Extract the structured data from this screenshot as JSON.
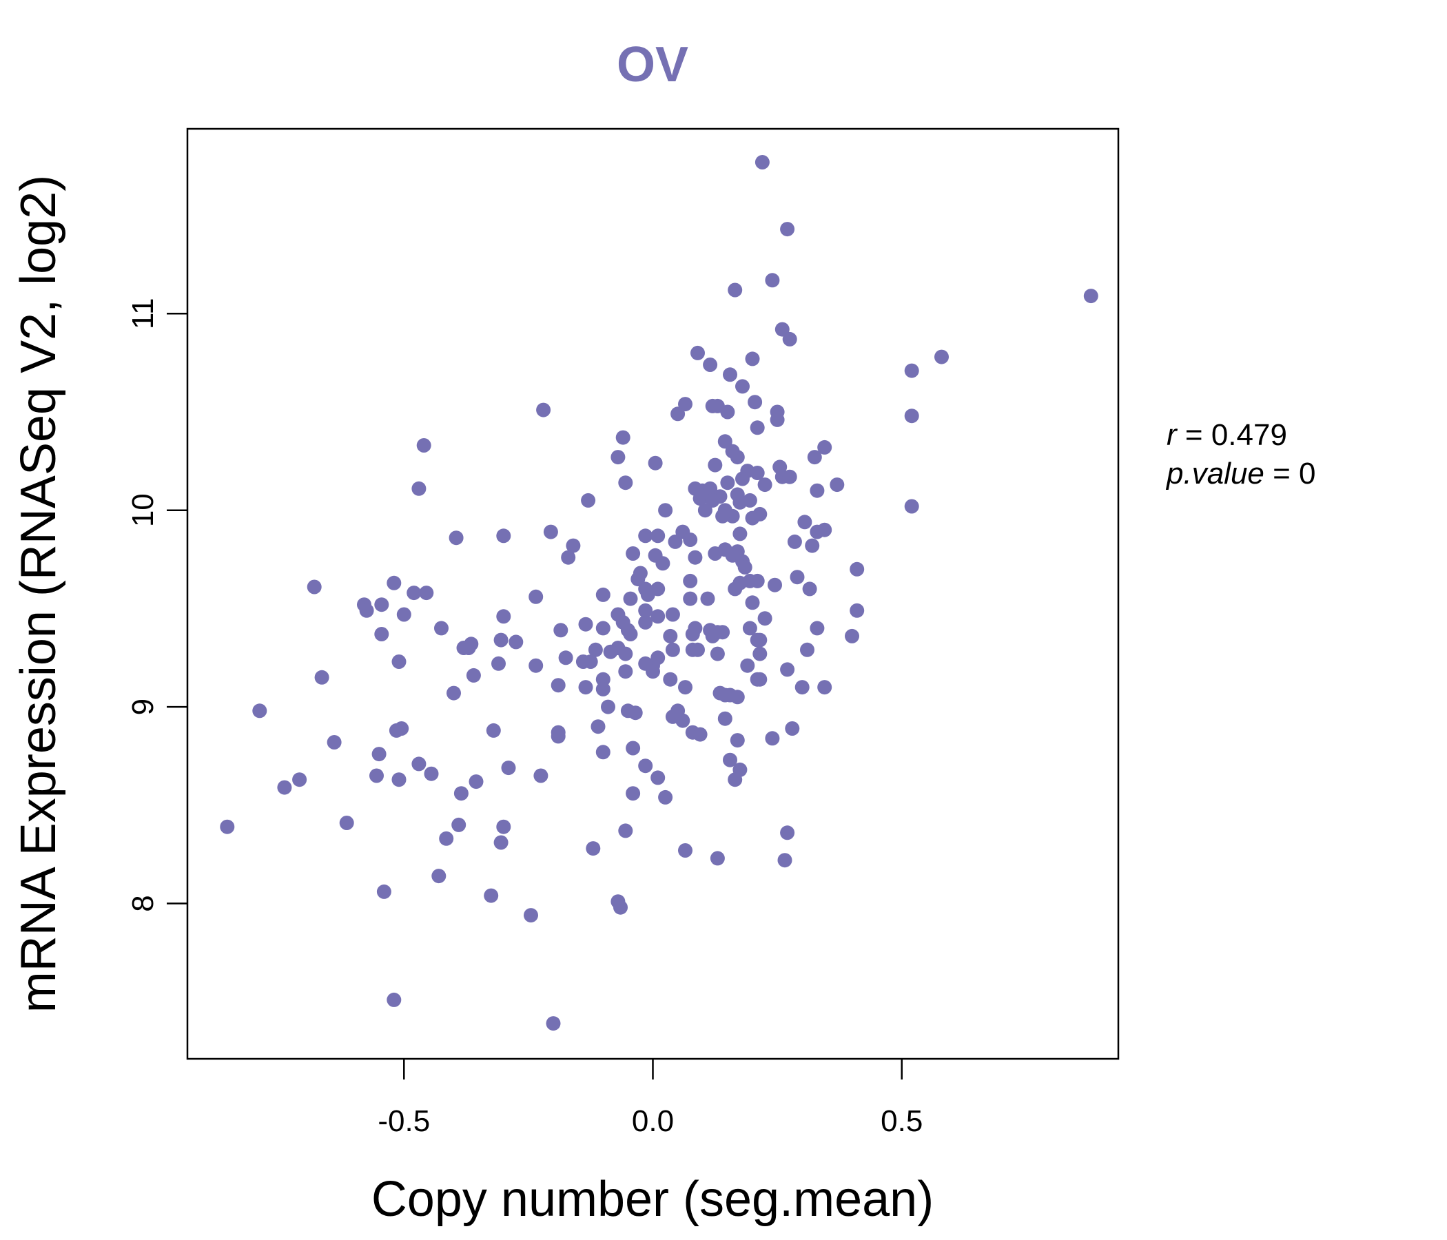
{
  "colors": {
    "accent": "#7570b3",
    "axis": "#000000",
    "background": "#ffffff"
  },
  "chart_data": {
    "type": "scatter",
    "title": "OV",
    "xlabel": "Copy number (seg.mean)",
    "ylabel": "mRNA Expression (RNASeq V2, log2)",
    "xlim": [
      -0.935,
      0.935
    ],
    "ylim": [
      7.21,
      11.94
    ],
    "x_ticks": [
      -0.5,
      0.0,
      0.5
    ],
    "x_tick_labels": [
      "-0.5",
      "0.0",
      "0.5"
    ],
    "y_ticks": [
      8,
      9,
      10,
      11
    ],
    "y_tick_labels": [
      "8",
      "9",
      "10",
      "11"
    ],
    "stats": {
      "r_label": "r",
      "r_value": "0.479",
      "p_label": "p.value",
      "p_value": "0"
    },
    "points": [
      [
        0.22,
        11.77
      ],
      [
        0.27,
        11.43
      ],
      [
        0.24,
        11.17
      ],
      [
        0.165,
        11.12
      ],
      [
        0.88,
        11.09
      ],
      [
        0.26,
        10.92
      ],
      [
        0.275,
        10.87
      ],
      [
        0.09,
        10.8
      ],
      [
        0.58,
        10.78
      ],
      [
        0.2,
        10.77
      ],
      [
        0.115,
        10.74
      ],
      [
        0.52,
        10.71
      ],
      [
        0.155,
        10.69
      ],
      [
        0.18,
        10.63
      ],
      [
        0.205,
        10.55
      ],
      [
        0.065,
        10.54
      ],
      [
        0.12,
        10.53
      ],
      [
        0.13,
        10.53
      ],
      [
        -0.22,
        10.51
      ],
      [
        0.05,
        10.49
      ],
      [
        0.15,
        10.5
      ],
      [
        0.25,
        10.5
      ],
      [
        0.52,
        10.48
      ],
      [
        0.25,
        10.46
      ],
      [
        0.21,
        10.42
      ],
      [
        -0.06,
        10.37
      ],
      [
        0.145,
        10.35
      ],
      [
        -0.46,
        10.33
      ],
      [
        0.345,
        10.32
      ],
      [
        0.16,
        10.3
      ],
      [
        -0.07,
        10.27
      ],
      [
        0.17,
        10.27
      ],
      [
        0.325,
        10.27
      ],
      [
        0.005,
        10.24
      ],
      [
        0.125,
        10.23
      ],
      [
        0.255,
        10.22
      ],
      [
        0.19,
        10.2
      ],
      [
        0.21,
        10.19
      ],
      [
        0.18,
        10.16
      ],
      [
        0.26,
        10.17
      ],
      [
        0.275,
        10.17
      ],
      [
        -0.055,
        10.14
      ],
      [
        0.15,
        10.14
      ],
      [
        0.225,
        10.13
      ],
      [
        0.37,
        10.13
      ],
      [
        -0.47,
        10.11
      ],
      [
        0.085,
        10.11
      ],
      [
        0.1,
        10.1
      ],
      [
        0.115,
        10.11
      ],
      [
        0.33,
        10.1
      ],
      [
        0.135,
        10.07
      ],
      [
        0.17,
        10.08
      ],
      [
        0.095,
        10.06
      ],
      [
        0.12,
        10.05
      ],
      [
        -0.13,
        10.05
      ],
      [
        0.175,
        10.04
      ],
      [
        0.195,
        10.05
      ],
      [
        0.52,
        10.02
      ],
      [
        0.105,
        10.0
      ],
      [
        0.145,
        10.0
      ],
      [
        0.025,
        10.0
      ],
      [
        0.215,
        9.98
      ],
      [
        0.16,
        9.97
      ],
      [
        0.14,
        9.97
      ],
      [
        0.2,
        9.96
      ],
      [
        0.305,
        9.94
      ],
      [
        -0.205,
        9.89
      ],
      [
        0.06,
        9.89
      ],
      [
        0.33,
        9.89
      ],
      [
        0.345,
        9.9
      ],
      [
        0.175,
        9.88
      ],
      [
        -0.3,
        9.87
      ],
      [
        -0.015,
        9.87
      ],
      [
        0.01,
        9.87
      ],
      [
        -0.395,
        9.86
      ],
      [
        0.075,
        9.85
      ],
      [
        0.045,
        9.84
      ],
      [
        0.285,
        9.84
      ],
      [
        -0.16,
        9.82
      ],
      [
        0.32,
        9.82
      ],
      [
        0.125,
        9.78
      ],
      [
        0.17,
        9.79
      ],
      [
        0.145,
        9.8
      ],
      [
        -0.04,
        9.78
      ],
      [
        0.005,
        9.77
      ],
      [
        0.085,
        9.76
      ],
      [
        0.16,
        9.77
      ],
      [
        0.18,
        9.74
      ],
      [
        -0.17,
        9.76
      ],
      [
        0.02,
        9.73
      ],
      [
        0.185,
        9.71
      ],
      [
        0.41,
        9.7
      ],
      [
        -0.025,
        9.68
      ],
      [
        -0.03,
        9.65
      ],
      [
        0.075,
        9.64
      ],
      [
        0.195,
        9.64
      ],
      [
        0.21,
        9.64
      ],
      [
        0.29,
        9.66
      ],
      [
        0.175,
        9.63
      ],
      [
        0.245,
        9.62
      ],
      [
        0.165,
        9.6
      ],
      [
        -0.68,
        9.61
      ],
      [
        0.315,
        9.6
      ],
      [
        -0.015,
        9.6
      ],
      [
        0.01,
        9.6
      ],
      [
        -0.52,
        9.63
      ],
      [
        -0.48,
        9.58
      ],
      [
        -0.455,
        9.58
      ],
      [
        -0.1,
        9.57
      ],
      [
        -0.01,
        9.57
      ],
      [
        -0.235,
        9.56
      ],
      [
        0.075,
        9.55
      ],
      [
        0.11,
        9.55
      ],
      [
        -0.045,
        9.55
      ],
      [
        -0.58,
        9.52
      ],
      [
        -0.545,
        9.52
      ],
      [
        0.2,
        9.53
      ],
      [
        -0.575,
        9.49
      ],
      [
        0.41,
        9.49
      ],
      [
        -0.015,
        9.49
      ],
      [
        -0.5,
        9.47
      ],
      [
        0.01,
        9.46
      ],
      [
        0.04,
        9.47
      ],
      [
        -0.07,
        9.47
      ],
      [
        -0.3,
        9.46
      ],
      [
        0.225,
        9.45
      ],
      [
        -0.015,
        9.43
      ],
      [
        -0.06,
        9.43
      ],
      [
        -0.135,
        9.42
      ],
      [
        -0.1,
        9.4
      ],
      [
        0.085,
        9.4
      ],
      [
        -0.05,
        9.39
      ],
      [
        0.115,
        9.39
      ],
      [
        0.195,
        9.4
      ],
      [
        -0.425,
        9.4
      ],
      [
        -0.185,
        9.39
      ],
      [
        0.33,
        9.4
      ],
      [
        0.13,
        9.38
      ],
      [
        0.14,
        9.38
      ],
      [
        -0.545,
        9.37
      ],
      [
        0.035,
        9.36
      ],
      [
        0.08,
        9.37
      ],
      [
        0.12,
        9.36
      ],
      [
        0.4,
        9.36
      ],
      [
        -0.305,
        9.34
      ],
      [
        0.21,
        9.34
      ],
      [
        0.215,
        9.34
      ],
      [
        -0.045,
        9.37
      ],
      [
        -0.275,
        9.33
      ],
      [
        -0.365,
        9.32
      ],
      [
        -0.37,
        9.3
      ],
      [
        -0.38,
        9.3
      ],
      [
        0.04,
        9.29
      ],
      [
        -0.115,
        9.29
      ],
      [
        -0.07,
        9.3
      ],
      [
        0.08,
        9.29
      ],
      [
        0.09,
        9.29
      ],
      [
        0.31,
        9.29
      ],
      [
        0.13,
        9.27
      ],
      [
        -0.085,
        9.28
      ],
      [
        0.215,
        9.27
      ],
      [
        0.01,
        9.25
      ],
      [
        -0.055,
        9.27
      ],
      [
        -0.175,
        9.25
      ],
      [
        -0.14,
        9.23
      ],
      [
        -0.125,
        9.23
      ],
      [
        -0.51,
        9.23
      ],
      [
        -0.31,
        9.22
      ],
      [
        -0.235,
        9.21
      ],
      [
        0.0,
        9.21
      ],
      [
        -0.015,
        9.22
      ],
      [
        0.19,
        9.21
      ],
      [
        0.27,
        9.19
      ],
      [
        -0.055,
        9.18
      ],
      [
        0.0,
        9.18
      ],
      [
        -0.665,
        9.15
      ],
      [
        -0.36,
        9.16
      ],
      [
        0.035,
        9.14
      ],
      [
        0.21,
        9.14
      ],
      [
        0.215,
        9.14
      ],
      [
        -0.1,
        9.14
      ],
      [
        0.3,
        9.1
      ],
      [
        0.345,
        9.1
      ],
      [
        0.065,
        9.1
      ],
      [
        -0.19,
        9.11
      ],
      [
        -0.135,
        9.1
      ],
      [
        -0.1,
        9.09
      ],
      [
        -0.4,
        9.07
      ],
      [
        0.135,
        9.07
      ],
      [
        0.145,
        9.06
      ],
      [
        0.155,
        9.06
      ],
      [
        0.17,
        9.05
      ],
      [
        -0.09,
        9.0
      ],
      [
        -0.05,
        8.98
      ],
      [
        -0.035,
        8.97
      ],
      [
        0.05,
        8.98
      ],
      [
        0.04,
        8.95
      ],
      [
        0.06,
        8.93
      ],
      [
        0.145,
        8.94
      ],
      [
        -0.79,
        8.98
      ],
      [
        -0.11,
        8.9
      ],
      [
        0.28,
        8.89
      ],
      [
        -0.505,
        8.89
      ],
      [
        -0.515,
        8.88
      ],
      [
        -0.32,
        8.88
      ],
      [
        -0.19,
        8.87
      ],
      [
        0.08,
        8.87
      ],
      [
        0.095,
        8.86
      ],
      [
        0.24,
        8.84
      ],
      [
        -0.19,
        8.85
      ],
      [
        0.17,
        8.83
      ],
      [
        -0.64,
        8.82
      ],
      [
        -0.04,
        8.79
      ],
      [
        -0.1,
        8.77
      ],
      [
        -0.55,
        8.76
      ],
      [
        0.155,
        8.73
      ],
      [
        -0.47,
        8.71
      ],
      [
        -0.015,
        8.7
      ],
      [
        -0.29,
        8.69
      ],
      [
        0.175,
        8.68
      ],
      [
        -0.445,
        8.66
      ],
      [
        -0.225,
        8.65
      ],
      [
        -0.555,
        8.65
      ],
      [
        0.01,
        8.64
      ],
      [
        -0.51,
        8.63
      ],
      [
        -0.71,
        8.63
      ],
      [
        0.165,
        8.63
      ],
      [
        -0.355,
        8.62
      ],
      [
        -0.74,
        8.59
      ],
      [
        -0.04,
        8.56
      ],
      [
        -0.385,
        8.56
      ],
      [
        0.025,
        8.54
      ],
      [
        -0.615,
        8.41
      ],
      [
        -0.39,
        8.4
      ],
      [
        -0.3,
        8.39
      ],
      [
        -0.055,
        8.37
      ],
      [
        0.27,
        8.36
      ],
      [
        -0.415,
        8.33
      ],
      [
        -0.305,
        8.31
      ],
      [
        -0.12,
        8.28
      ],
      [
        0.065,
        8.27
      ],
      [
        0.13,
        8.23
      ],
      [
        0.265,
        8.22
      ],
      [
        -0.43,
        8.14
      ],
      [
        -0.54,
        8.06
      ],
      [
        -0.325,
        8.04
      ],
      [
        -0.07,
        8.01
      ],
      [
        -0.065,
        7.98
      ],
      [
        -0.245,
        7.94
      ],
      [
        -0.855,
        8.39
      ],
      [
        -0.52,
        7.51
      ],
      [
        -0.2,
        7.39
      ]
    ]
  }
}
